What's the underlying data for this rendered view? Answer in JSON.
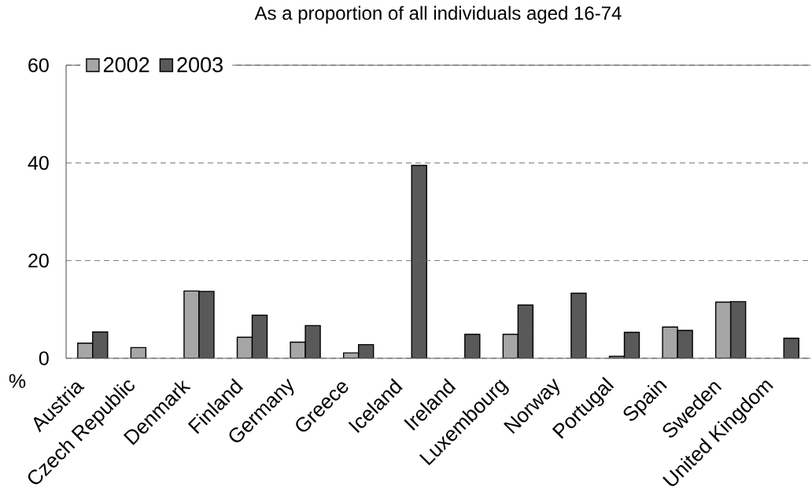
{
  "chart_data": {
    "type": "bar",
    "title": "As a proportion of all individuals aged 16-74",
    "ylabel": "%",
    "categories": [
      "Austria",
      "Czech Republic",
      "Denmark",
      "Finland",
      "Germany",
      "Greece",
      "Iceland",
      "Ireland",
      "Luxembourg",
      "Norway",
      "Portugal",
      "Spain",
      "Sweden",
      "United Kingdom"
    ],
    "series": [
      {
        "name": "2002",
        "color": "#a6a6a6",
        "values": [
          3.1,
          2.2,
          13.8,
          4.3,
          3.3,
          1.1,
          null,
          null,
          4.9,
          null,
          0.4,
          6.4,
          11.5,
          null
        ]
      },
      {
        "name": "2003",
        "color": "#595959",
        "values": [
          5.4,
          null,
          13.7,
          8.8,
          6.7,
          2.8,
          39.5,
          4.9,
          10.9,
          13.3,
          5.3,
          5.7,
          11.6,
          4.1
        ]
      }
    ],
    "ylim": [
      0,
      60
    ],
    "yticks": [
      0,
      20,
      40,
      60
    ],
    "grid": "y",
    "legend": "top left"
  }
}
